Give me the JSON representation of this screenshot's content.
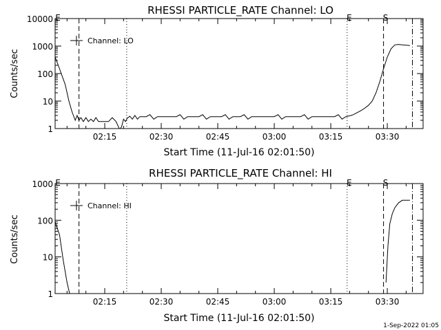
{
  "chart_data": [
    {
      "type": "line",
      "title": "RHESSI PARTICLE_RATE Channel: LO",
      "xlabel": "Start Time (11-Jul-16 02:01:50)",
      "ylabel": "Counts/sec",
      "yscale": "log",
      "ylim": [
        1,
        10000
      ],
      "xlim": [
        "02:01:50",
        "03:39:30"
      ],
      "xtick_labels": [
        "02:15",
        "02:30",
        "02:45",
        "03:00",
        "03:15",
        "03:30"
      ],
      "ytick_labels": [
        "1",
        "10",
        "100",
        "1000",
        "10000"
      ],
      "legend": {
        "label": "Channel: LO",
        "position": "top-left"
      },
      "markers": [
        {
          "label": "E",
          "time": "02:01:50",
          "style": "none"
        },
        {
          "label": "",
          "time": "02:08:10",
          "style": "dashed"
        },
        {
          "label": "",
          "time": "02:20:50",
          "style": "dotted"
        },
        {
          "label": "E",
          "time": "03:19:20",
          "style": "dotted"
        },
        {
          "label": "S",
          "time": "03:29:00",
          "style": "dashed"
        },
        {
          "label": "",
          "time": "03:36:40",
          "style": "dashdot"
        }
      ],
      "series": [
        {
          "x": [
            "02:01:50",
            "02:03:00",
            "02:04:30",
            "02:05:30",
            "02:06:20",
            "02:07:10",
            "02:07:40",
            "02:08:10",
            "02:08:40",
            "02:09:20",
            "02:10:00",
            "02:10:40",
            "02:11:20",
            "02:12:00",
            "02:12:40",
            "02:13:20",
            "02:14:00",
            "02:15:00",
            "02:16:00",
            "02:17:00",
            "02:18:00",
            "02:19:00",
            "02:19:30",
            "02:20:00",
            "02:20:30",
            "02:21:00",
            "02:21:40",
            "02:22:20",
            "02:23:00",
            "02:23:40",
            "02:24:20",
            "02:25:00",
            "02:26:00",
            "02:27:00",
            "02:28:00",
            "02:29:00",
            "02:30:00",
            "02:31:00",
            "02:32:00",
            "02:33:00",
            "02:34:00",
            "02:35:00",
            "02:36:00",
            "02:37:00",
            "02:38:00",
            "02:39:00",
            "02:40:00",
            "02:41:00",
            "02:42:00",
            "02:43:00",
            "02:44:00",
            "02:45:00",
            "02:46:00",
            "02:47:00",
            "02:48:00",
            "02:49:00",
            "02:50:00",
            "02:51:00",
            "02:52:00",
            "02:53:00",
            "02:54:00",
            "02:55:00",
            "02:56:00",
            "02:57:00",
            "02:58:00",
            "02:59:00",
            "03:00:00",
            "03:01:00",
            "03:02:00",
            "03:03:00",
            "03:04:00",
            "03:05:00",
            "03:06:00",
            "03:07:00",
            "03:08:00",
            "03:09:00",
            "03:10:00",
            "03:11:00",
            "03:12:00",
            "03:13:00",
            "03:14:00",
            "03:15:00",
            "03:16:00",
            "03:17:00",
            "03:18:00",
            "03:19:00",
            "03:20:00",
            "03:21:00",
            "03:22:00",
            "03:23:00",
            "03:24:00",
            "03:25:00",
            "03:26:00",
            "03:27:00",
            "03:28:00",
            "03:29:00",
            "03:30:00",
            "03:31:00",
            "03:32:00",
            "03:33:00",
            "03:34:00",
            "03:35:00",
            "03:36:00"
          ],
          "y": [
            400,
            150,
            40,
            10,
            4,
            2,
            3,
            2,
            2.5,
            1.8,
            2.5,
            1.8,
            2.2,
            1.8,
            2.5,
            1.8,
            1.8,
            1.8,
            1.8,
            2.5,
            1.8,
            0.9,
            1.2,
            2.2,
            1.8,
            2.4,
            2.8,
            2.2,
            3,
            2.2,
            2.7,
            2.7,
            2.7,
            3.2,
            2.2,
            2.7,
            2.7,
            2.7,
            2.7,
            2.7,
            2.7,
            3.2,
            2.2,
            2.7,
            2.7,
            2.7,
            2.7,
            3.2,
            2.2,
            2.7,
            2.7,
            2.7,
            2.7,
            3.2,
            2.2,
            2.7,
            2.7,
            2.7,
            3.2,
            2.2,
            2.7,
            2.7,
            2.7,
            2.7,
            2.7,
            2.7,
            2.7,
            3.2,
            2.2,
            2.7,
            2.7,
            2.7,
            2.7,
            2.7,
            3.2,
            2.2,
            2.7,
            2.7,
            2.7,
            2.7,
            2.7,
            2.7,
            2.7,
            3.2,
            2.2,
            2.7,
            2.9,
            3.2,
            3.8,
            4.5,
            5.5,
            7,
            10,
            20,
            50,
            150,
            400,
            800,
            1100,
            1150,
            1100,
            1080,
            1050
          ]
        }
      ]
    },
    {
      "type": "line",
      "title": "RHESSI PARTICLE_RATE Channel: HI",
      "xlabel": "Start Time (11-Jul-16 02:01:50)",
      "ylabel": "Counts/sec",
      "yscale": "log",
      "ylim": [
        1,
        1000
      ],
      "xlim": [
        "02:01:50",
        "03:39:30"
      ],
      "xtick_labels": [
        "02:15",
        "02:30",
        "02:45",
        "03:00",
        "03:15",
        "03:30"
      ],
      "ytick_labels": [
        "1",
        "10",
        "100",
        "1000"
      ],
      "legend": {
        "label": "Channel: HI",
        "position": "top-left"
      },
      "markers": [
        {
          "label": "E",
          "time": "02:01:50",
          "style": "none"
        },
        {
          "label": "",
          "time": "02:08:10",
          "style": "dashed"
        },
        {
          "label": "",
          "time": "02:20:50",
          "style": "dotted"
        },
        {
          "label": "E",
          "time": "03:19:20",
          "style": "dotted"
        },
        {
          "label": "S",
          "time": "03:29:00",
          "style": "dashed"
        },
        {
          "label": "",
          "time": "03:36:40",
          "style": "dashdot"
        }
      ],
      "series": [
        {
          "x": [
            "02:01:50",
            "02:03:00",
            "02:04:00",
            "02:05:00",
            "02:05:40"
          ],
          "y": [
            90,
            40,
            8,
            2,
            1
          ]
        },
        {
          "x": [
            "03:29:40",
            "03:30:10",
            "03:30:40",
            "03:31:20",
            "03:32:00",
            "03:33:00",
            "03:34:00",
            "03:35:00",
            "03:36:00"
          ],
          "y": [
            2,
            20,
            80,
            150,
            220,
            300,
            350,
            350,
            350
          ]
        }
      ]
    }
  ],
  "footer": {
    "stamp": "1-Sep-2022 01:05"
  }
}
